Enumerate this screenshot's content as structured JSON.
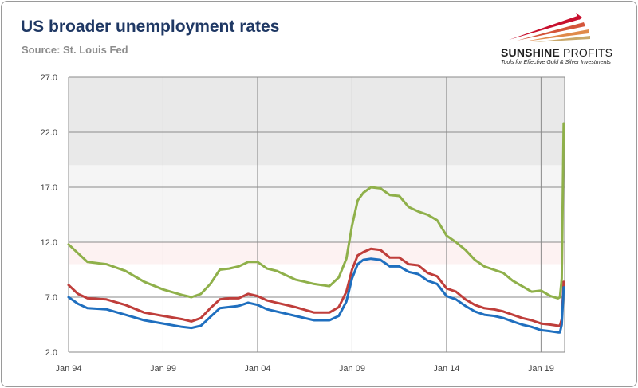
{
  "header": {
    "title": "US broader unemployment rates",
    "subtitle": "Source: St. Louis Fed"
  },
  "logo": {
    "name_bold": "SUNSHINE",
    "name_thin": " PROFITS",
    "tagline": "Tools for Effective Gold & Silver Investments"
  },
  "colors": {
    "green": "#8fb04a",
    "red": "#bf3e3b",
    "blue": "#1f6fbf",
    "band_dark": "#e9e9e9",
    "band_light": "#f5f5f5",
    "band_pink": "#fdf2f2",
    "grid": "#8a8a8a"
  },
  "chart_data": {
    "type": "line",
    "ylim": [
      2.0,
      27.0
    ],
    "yticks": [
      2.0,
      7.0,
      12.0,
      17.0,
      22.0,
      27.0
    ],
    "ytick_labels": [
      "2.0",
      "7.0",
      "12.0",
      "17.0",
      "22.0",
      "27.0"
    ],
    "xlim": [
      1994.0,
      2020.25
    ],
    "xticks": [
      1994,
      1999,
      2004,
      2009,
      2014,
      2019
    ],
    "xtick_labels": [
      "Jan 94",
      "Jan 99",
      "Jan 04",
      "Jan 09",
      "Jan 14",
      "Jan 19"
    ],
    "grid": true,
    "bands": [
      {
        "from": 19.0,
        "to": 27.0,
        "color": "band_dark"
      },
      {
        "from": 12.0,
        "to": 19.0,
        "color": "band_light"
      },
      {
        "from": 10.0,
        "to": 12.0,
        "color": "band_pink"
      }
    ],
    "series": [
      {
        "color": "green",
        "x": [
          1994.0,
          1994.5,
          1995.0,
          1996.0,
          1997.0,
          1998.0,
          1999.0,
          2000.0,
          2000.5,
          2001.0,
          2001.5,
          2002.0,
          2002.5,
          2003.0,
          2003.5,
          2004.0,
          2004.5,
          2005.0,
          2006.0,
          2007.0,
          2007.8,
          2008.3,
          2008.7,
          2009.0,
          2009.3,
          2009.6,
          2010.0,
          2010.5,
          2011.0,
          2011.5,
          2012.0,
          2012.5,
          2013.0,
          2013.5,
          2014.0,
          2014.5,
          2015.0,
          2015.5,
          2016.0,
          2016.5,
          2017.0,
          2017.5,
          2018.0,
          2018.5,
          2019.0,
          2019.5,
          2019.9,
          2020.0,
          2020.1,
          2020.2
        ],
        "values": [
          11.8,
          11.0,
          10.2,
          10.0,
          9.4,
          8.4,
          7.7,
          7.2,
          7.0,
          7.3,
          8.2,
          9.5,
          9.6,
          9.8,
          10.2,
          10.2,
          9.6,
          9.4,
          8.6,
          8.2,
          8.0,
          8.8,
          10.5,
          13.5,
          15.8,
          16.5,
          17.0,
          16.9,
          16.3,
          16.2,
          15.2,
          14.8,
          14.5,
          14.0,
          12.6,
          12.0,
          11.3,
          10.4,
          9.8,
          9.5,
          9.2,
          8.5,
          8.0,
          7.5,
          7.6,
          7.1,
          6.9,
          7.0,
          8.7,
          22.8
        ]
      },
      {
        "color": "red",
        "x": [
          1994.0,
          1994.5,
          1995.0,
          1996.0,
          1997.0,
          1998.0,
          1999.0,
          2000.0,
          2000.5,
          2001.0,
          2001.5,
          2002.0,
          2002.5,
          2003.0,
          2003.5,
          2004.0,
          2004.5,
          2005.0,
          2006.0,
          2007.0,
          2007.8,
          2008.3,
          2008.7,
          2009.0,
          2009.3,
          2009.6,
          2010.0,
          2010.5,
          2011.0,
          2011.5,
          2012.0,
          2012.5,
          2013.0,
          2013.5,
          2014.0,
          2014.5,
          2015.0,
          2015.5,
          2016.0,
          2016.5,
          2017.0,
          2017.5,
          2018.0,
          2018.5,
          2019.0,
          2019.5,
          2019.9,
          2020.0,
          2020.1,
          2020.2
        ],
        "values": [
          8.1,
          7.3,
          6.9,
          6.8,
          6.3,
          5.6,
          5.3,
          5.0,
          4.8,
          5.1,
          6.0,
          6.8,
          6.9,
          6.9,
          7.3,
          7.1,
          6.7,
          6.5,
          6.1,
          5.6,
          5.6,
          6.1,
          7.5,
          9.5,
          10.8,
          11.1,
          11.4,
          11.3,
          10.6,
          10.6,
          10.0,
          9.9,
          9.2,
          8.9,
          7.8,
          7.5,
          6.8,
          6.3,
          6.0,
          5.9,
          5.7,
          5.4,
          5.1,
          4.9,
          4.6,
          4.5,
          4.4,
          4.4,
          5.0,
          8.4
        ]
      },
      {
        "color": "blue",
        "x": [
          1994.0,
          1994.5,
          1995.0,
          1996.0,
          1997.0,
          1998.0,
          1999.0,
          2000.0,
          2000.5,
          2001.0,
          2001.5,
          2002.0,
          2002.5,
          2003.0,
          2003.5,
          2004.0,
          2004.5,
          2005.0,
          2006.0,
          2007.0,
          2007.8,
          2008.3,
          2008.7,
          2009.0,
          2009.3,
          2009.6,
          2010.0,
          2010.5,
          2011.0,
          2011.5,
          2012.0,
          2012.5,
          2013.0,
          2013.5,
          2014.0,
          2014.5,
          2015.0,
          2015.5,
          2016.0,
          2016.5,
          2017.0,
          2017.5,
          2018.0,
          2018.5,
          2019.0,
          2019.5,
          2019.9,
          2020.0,
          2020.1,
          2020.2
        ],
        "values": [
          7.0,
          6.4,
          6.0,
          5.9,
          5.4,
          4.9,
          4.6,
          4.3,
          4.2,
          4.4,
          5.2,
          6.0,
          6.1,
          6.2,
          6.5,
          6.3,
          5.9,
          5.7,
          5.3,
          4.9,
          4.9,
          5.3,
          6.6,
          8.7,
          10.0,
          10.4,
          10.5,
          10.4,
          9.8,
          9.8,
          9.3,
          9.1,
          8.5,
          8.2,
          7.1,
          6.8,
          6.2,
          5.7,
          5.4,
          5.3,
          5.1,
          4.8,
          4.5,
          4.3,
          4.0,
          3.9,
          3.8,
          3.8,
          4.5,
          7.9
        ]
      }
    ]
  }
}
